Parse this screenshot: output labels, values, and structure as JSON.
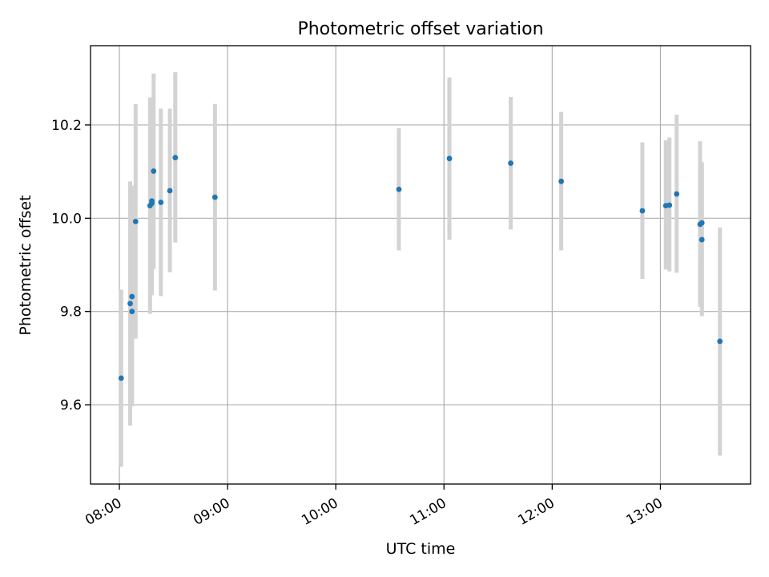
{
  "chart_data": {
    "type": "scatter",
    "title": "Photometric offset variation",
    "xlabel": "UTC time",
    "ylabel": "Photometric offset",
    "x_ticks": [
      "08:00",
      "09:00",
      "10:00",
      "11:00",
      "12:00",
      "13:00"
    ],
    "y_ticks": [
      "9.6",
      "9.8",
      "10.0",
      "10.2"
    ],
    "xlim": [
      "07:44",
      "13:50"
    ],
    "ylim": [
      9.43,
      10.37
    ],
    "grid": true,
    "colors": {
      "points": "#1f77b4",
      "error_bars": "#d3d3d3"
    },
    "series": [
      {
        "points": [
          {
            "x": "08:01",
            "y": 9.657,
            "ylow": 9.467,
            "yhigh": 9.847
          },
          {
            "x": "08:06",
            "y": 9.817,
            "ylow": 9.555,
            "yhigh": 10.079
          },
          {
            "x": "08:07",
            "y": 9.8,
            "ylow": 9.6,
            "yhigh": 10.07
          },
          {
            "x": "08:07",
            "y": 9.832,
            "ylow": 9.597,
            "yhigh": 10.067
          },
          {
            "x": "08:09",
            "y": 9.993,
            "ylow": 9.742,
            "yhigh": 10.245
          },
          {
            "x": "08:17",
            "y": 10.027,
            "ylow": 9.795,
            "yhigh": 10.259
          },
          {
            "x": "08:18",
            "y": 10.032,
            "ylow": 9.89,
            "yhigh": 10.2
          },
          {
            "x": "08:18",
            "y": 10.037,
            "ylow": 9.835,
            "yhigh": 10.24
          },
          {
            "x": "08:19",
            "y": 10.101,
            "ylow": 9.891,
            "yhigh": 10.31
          },
          {
            "x": "08:23",
            "y": 10.034,
            "ylow": 9.833,
            "yhigh": 10.235
          },
          {
            "x": "08:28",
            "y": 10.059,
            "ylow": 9.884,
            "yhigh": 10.235
          },
          {
            "x": "08:31",
            "y": 10.13,
            "ylow": 9.948,
            "yhigh": 10.313
          },
          {
            "x": "08:53",
            "y": 10.045,
            "ylow": 9.845,
            "yhigh": 10.245
          },
          {
            "x": "10:35",
            "y": 10.062,
            "ylow": 9.931,
            "yhigh": 10.193
          },
          {
            "x": "11:03",
            "y": 10.128,
            "ylow": 9.954,
            "yhigh": 10.302
          },
          {
            "x": "11:37",
            "y": 10.118,
            "ylow": 9.976,
            "yhigh": 10.26
          },
          {
            "x": "12:05",
            "y": 10.079,
            "ylow": 9.931,
            "yhigh": 10.228
          },
          {
            "x": "12:50",
            "y": 10.016,
            "ylow": 9.87,
            "yhigh": 10.163
          },
          {
            "x": "13:03",
            "y": 10.027,
            "ylow": 9.89,
            "yhigh": 10.167
          },
          {
            "x": "13:05",
            "y": 10.028,
            "ylow": 9.886,
            "yhigh": 10.173
          },
          {
            "x": "13:09",
            "y": 10.052,
            "ylow": 9.883,
            "yhigh": 10.222
          },
          {
            "x": "13:22",
            "y": 9.987,
            "ylow": 9.81,
            "yhigh": 10.165
          },
          {
            "x": "13:23",
            "y": 9.99,
            "ylow": 9.8,
            "yhigh": 10.12
          },
          {
            "x": "13:23",
            "y": 9.954,
            "ylow": 9.79,
            "yhigh": 10.12
          },
          {
            "x": "13:33",
            "y": 9.736,
            "ylow": 9.491,
            "yhigh": 9.98
          }
        ]
      }
    ]
  }
}
